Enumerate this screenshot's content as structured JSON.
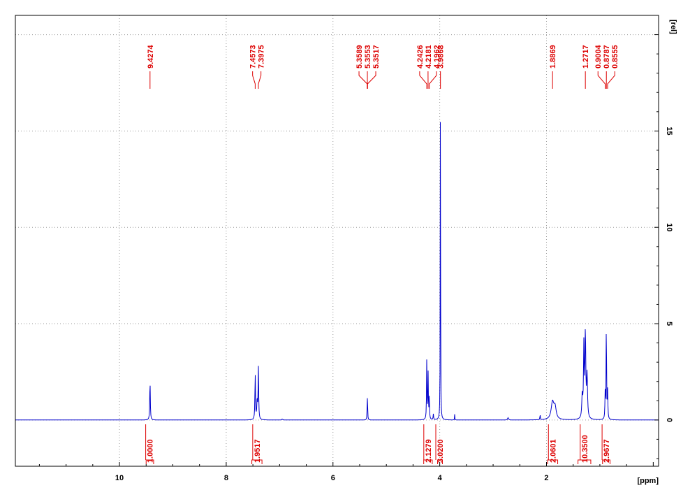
{
  "chart_data": {
    "type": "line",
    "title": "",
    "xlabel": "[ppm]",
    "ylabel": "[rel]",
    "x_reversed": true,
    "xlim": [
      11.95,
      -0.1
    ],
    "ylim": [
      -2.4,
      21.0
    ],
    "x_ticks": [
      {
        "value": 10,
        "label": "10"
      },
      {
        "value": 8,
        "label": "8"
      },
      {
        "value": 6,
        "label": "6"
      },
      {
        "value": 4,
        "label": "4"
      },
      {
        "value": 2,
        "label": "2"
      }
    ],
    "y_ticks": [
      {
        "value": 0,
        "label": "0"
      },
      {
        "value": 5,
        "label": "5"
      },
      {
        "value": 10,
        "label": "10"
      },
      {
        "value": 15,
        "label": "15"
      }
    ],
    "grid": true,
    "colors": {
      "spectrum": "#0000cc",
      "annotation": "#dd0000",
      "axis": "#000000",
      "grid": "#999999"
    },
    "peaks": [
      {
        "x": 9.4274,
        "y": 2.1,
        "w": 0.006
      },
      {
        "x": 7.4573,
        "y": 2.4,
        "w": 0.006
      },
      {
        "x": 7.3975,
        "y": 2.7,
        "w": 0.006
      },
      {
        "x": 7.42,
        "y": 1.0,
        "w": 0.008
      },
      {
        "x": 6.95,
        "y": 0.05,
        "w": 0.01
      },
      {
        "x": 5.3589,
        "y": 0.55,
        "w": 0.004
      },
      {
        "x": 5.3553,
        "y": 0.55,
        "w": 0.004
      },
      {
        "x": 5.3517,
        "y": 0.5,
        "w": 0.004
      },
      {
        "x": 4.2426,
        "y": 3.2,
        "w": 0.005
      },
      {
        "x": 4.2181,
        "y": 2.4,
        "w": 0.005
      },
      {
        "x": 4.1962,
        "y": 1.2,
        "w": 0.005
      },
      {
        "x": 4.12,
        "y": 0.3,
        "w": 0.005
      },
      {
        "x": 3.9868,
        "y": 15.0,
        "w": 0.002
      },
      {
        "x": 3.9868,
        "y": 8.8,
        "w": 0.004
      },
      {
        "x": 3.72,
        "y": 0.3,
        "w": 0.003
      },
      {
        "x": 2.72,
        "y": 0.12,
        "w": 0.01
      },
      {
        "x": 2.12,
        "y": 0.3,
        "w": 0.004
      },
      {
        "x": 1.8869,
        "y": 0.9,
        "w": 0.03
      },
      {
        "x": 1.84,
        "y": 0.6,
        "w": 0.025
      },
      {
        "x": 1.3,
        "y": 3.7,
        "w": 0.008
      },
      {
        "x": 1.2717,
        "y": 4.4,
        "w": 0.009
      },
      {
        "x": 1.24,
        "y": 2.2,
        "w": 0.01
      },
      {
        "x": 1.33,
        "y": 1.2,
        "w": 0.01
      },
      {
        "x": 0.9004,
        "y": 1.4,
        "w": 0.006
      },
      {
        "x": 0.8787,
        "y": 6.0,
        "w": 0.004
      },
      {
        "x": 0.8555,
        "y": 1.5,
        "w": 0.006
      }
    ],
    "peak_labels": [
      {
        "x": 9.4274,
        "label": "9.4274",
        "group": 1
      },
      {
        "x": 7.4573,
        "label": "7.4573",
        "group": 2
      },
      {
        "x": 7.3975,
        "label": "7.3975",
        "group": 2
      },
      {
        "x": 5.3589,
        "label": "5.3589",
        "group": 3
      },
      {
        "x": 5.3553,
        "label": "5.3553",
        "group": 3
      },
      {
        "x": 5.3517,
        "label": "5.3517",
        "group": 3
      },
      {
        "x": 4.2426,
        "label": "4.2426",
        "group": 4
      },
      {
        "x": 4.2181,
        "label": "4.2181",
        "group": 4
      },
      {
        "x": 4.1962,
        "label": "4.1962",
        "group": 4
      },
      {
        "x": 3.9868,
        "label": "3.9868",
        "group": 5
      },
      {
        "x": 1.8869,
        "label": "1.8869",
        "group": 6
      },
      {
        "x": 1.2717,
        "label": "1.2717",
        "group": 7
      },
      {
        "x": 0.9004,
        "label": "0.9004",
        "group": 8
      },
      {
        "x": 0.8787,
        "label": "0.8787",
        "group": 8
      },
      {
        "x": 0.8555,
        "label": "0.8555",
        "group": 8
      }
    ],
    "integrals": [
      {
        "from": 9.5,
        "to": 9.36,
        "value": "1.0000"
      },
      {
        "from": 7.52,
        "to": 7.33,
        "value": "1.9517"
      },
      {
        "from": 4.3,
        "to": 4.14,
        "value": "2.1279"
      },
      {
        "from": 4.04,
        "to": 3.95,
        "value": "3.0200"
      },
      {
        "from": 1.98,
        "to": 1.79,
        "value": "2.0601"
      },
      {
        "from": 1.41,
        "to": 1.17,
        "value": "10.3500"
      },
      {
        "from": 0.95,
        "to": 0.81,
        "value": "2.9677"
      }
    ]
  }
}
